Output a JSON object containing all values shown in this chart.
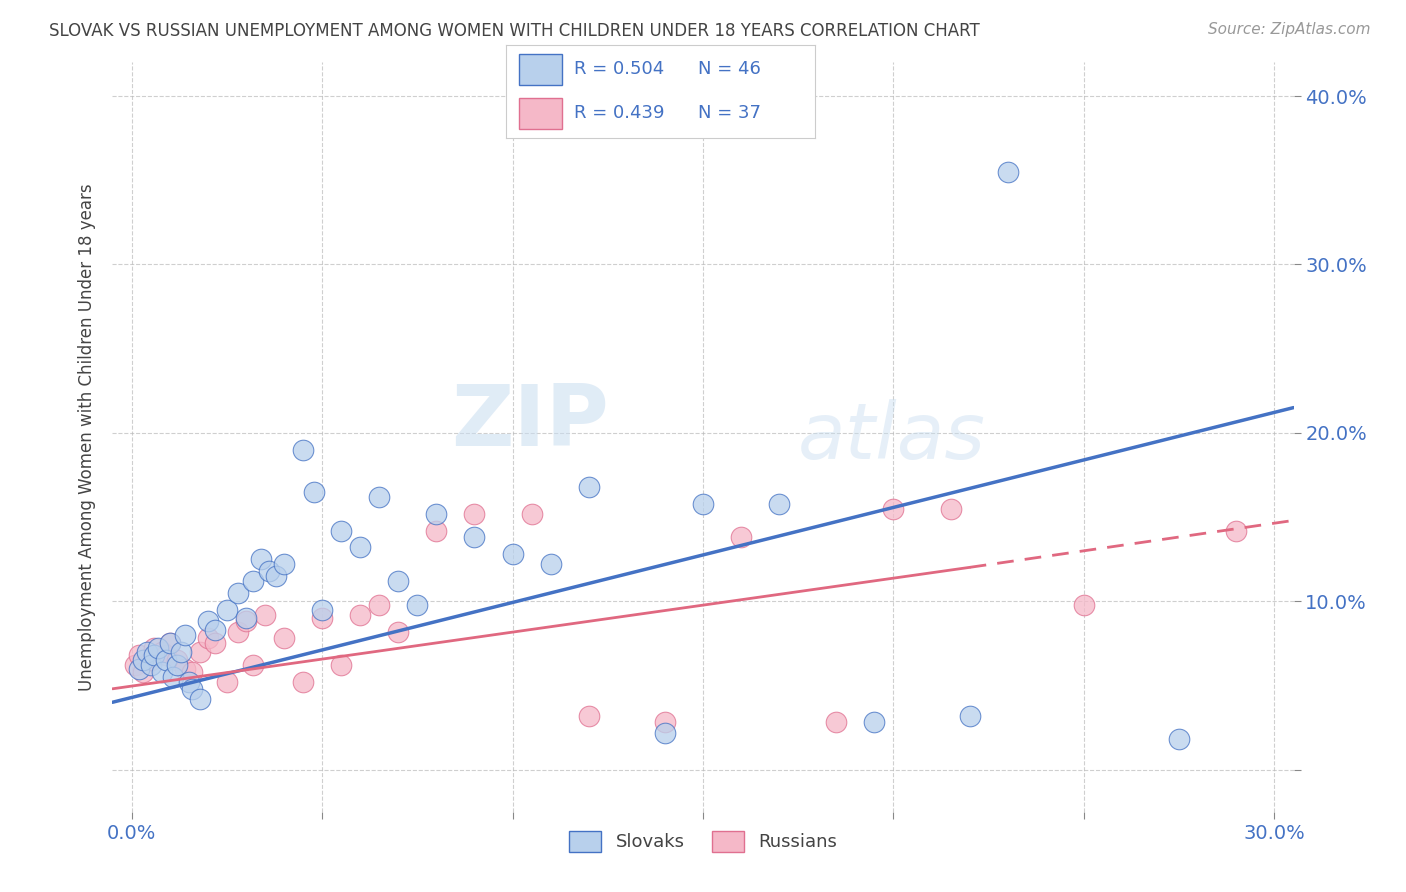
{
  "title": "SLOVAK VS RUSSIAN UNEMPLOYMENT AMONG WOMEN WITH CHILDREN UNDER 18 YEARS CORRELATION CHART",
  "source": "Source: ZipAtlas.com",
  "ylabel": "Unemployment Among Women with Children Under 18 years",
  "xlim": [
    -0.005,
    0.305
  ],
  "ylim": [
    -0.025,
    0.42
  ],
  "xticks": [
    0.0,
    0.05,
    0.1,
    0.15,
    0.2,
    0.25,
    0.3
  ],
  "yticks": [
    0.0,
    0.1,
    0.2,
    0.3,
    0.4
  ],
  "xtick_labels": [
    "0.0%",
    "",
    "",
    "",
    "",
    "",
    "30.0%"
  ],
  "ytick_labels": [
    "",
    "10.0%",
    "20.0%",
    "30.0%",
    "40.0%"
  ],
  "background_color": "#ffffff",
  "grid_color": "#bbbbbb",
  "watermark_zip": "ZIP",
  "watermark_atlas": "atlas",
  "slovak_color_fill": "#b8d0ec",
  "slovak_color_edge": "#4472c4",
  "russian_color_fill": "#f5b8c8",
  "russian_color_edge": "#e07090",
  "line_color_slovak": "#4472c4",
  "line_color_russian": "#e06880",
  "tick_color": "#4472c4",
  "title_color": "#444444",
  "source_color": "#999999",
  "ylabel_color": "#444444",
  "legend_r1": "R = 0.504",
  "legend_n1": "N = 46",
  "legend_r2": "R = 0.439",
  "legend_n2": "N = 37",
  "slovak_line_start_y": 0.04,
  "slovak_line_end_y": 0.215,
  "russian_line_start_y": 0.048,
  "russian_line_end_y": 0.148,
  "slovak_x": [
    0.002,
    0.003,
    0.004,
    0.005,
    0.006,
    0.007,
    0.008,
    0.009,
    0.01,
    0.011,
    0.012,
    0.013,
    0.014,
    0.015,
    0.016,
    0.018,
    0.02,
    0.022,
    0.025,
    0.028,
    0.03,
    0.032,
    0.034,
    0.036,
    0.038,
    0.04,
    0.045,
    0.048,
    0.05,
    0.055,
    0.06,
    0.065,
    0.07,
    0.075,
    0.08,
    0.09,
    0.1,
    0.11,
    0.12,
    0.14,
    0.15,
    0.17,
    0.195,
    0.22,
    0.23,
    0.275
  ],
  "slovak_y": [
    0.06,
    0.065,
    0.07,
    0.062,
    0.068,
    0.072,
    0.058,
    0.065,
    0.075,
    0.055,
    0.062,
    0.07,
    0.08,
    0.052,
    0.048,
    0.042,
    0.088,
    0.083,
    0.095,
    0.105,
    0.09,
    0.112,
    0.125,
    0.118,
    0.115,
    0.122,
    0.19,
    0.165,
    0.095,
    0.142,
    0.132,
    0.162,
    0.112,
    0.098,
    0.152,
    0.138,
    0.128,
    0.122,
    0.168,
    0.022,
    0.158,
    0.158,
    0.028,
    0.032,
    0.355,
    0.018
  ],
  "russian_x": [
    0.001,
    0.002,
    0.003,
    0.005,
    0.006,
    0.008,
    0.009,
    0.01,
    0.012,
    0.014,
    0.016,
    0.018,
    0.02,
    0.022,
    0.025,
    0.028,
    0.03,
    0.032,
    0.035,
    0.04,
    0.045,
    0.05,
    0.055,
    0.06,
    0.065,
    0.07,
    0.08,
    0.09,
    0.105,
    0.12,
    0.14,
    0.16,
    0.185,
    0.2,
    0.215,
    0.25,
    0.29
  ],
  "russian_y": [
    0.062,
    0.068,
    0.058,
    0.065,
    0.072,
    0.07,
    0.068,
    0.075,
    0.065,
    0.06,
    0.058,
    0.07,
    0.078,
    0.075,
    0.052,
    0.082,
    0.088,
    0.062,
    0.092,
    0.078,
    0.052,
    0.09,
    0.062,
    0.092,
    0.098,
    0.082,
    0.142,
    0.152,
    0.152,
    0.032,
    0.028,
    0.138,
    0.028,
    0.155,
    0.155,
    0.098,
    0.142
  ]
}
